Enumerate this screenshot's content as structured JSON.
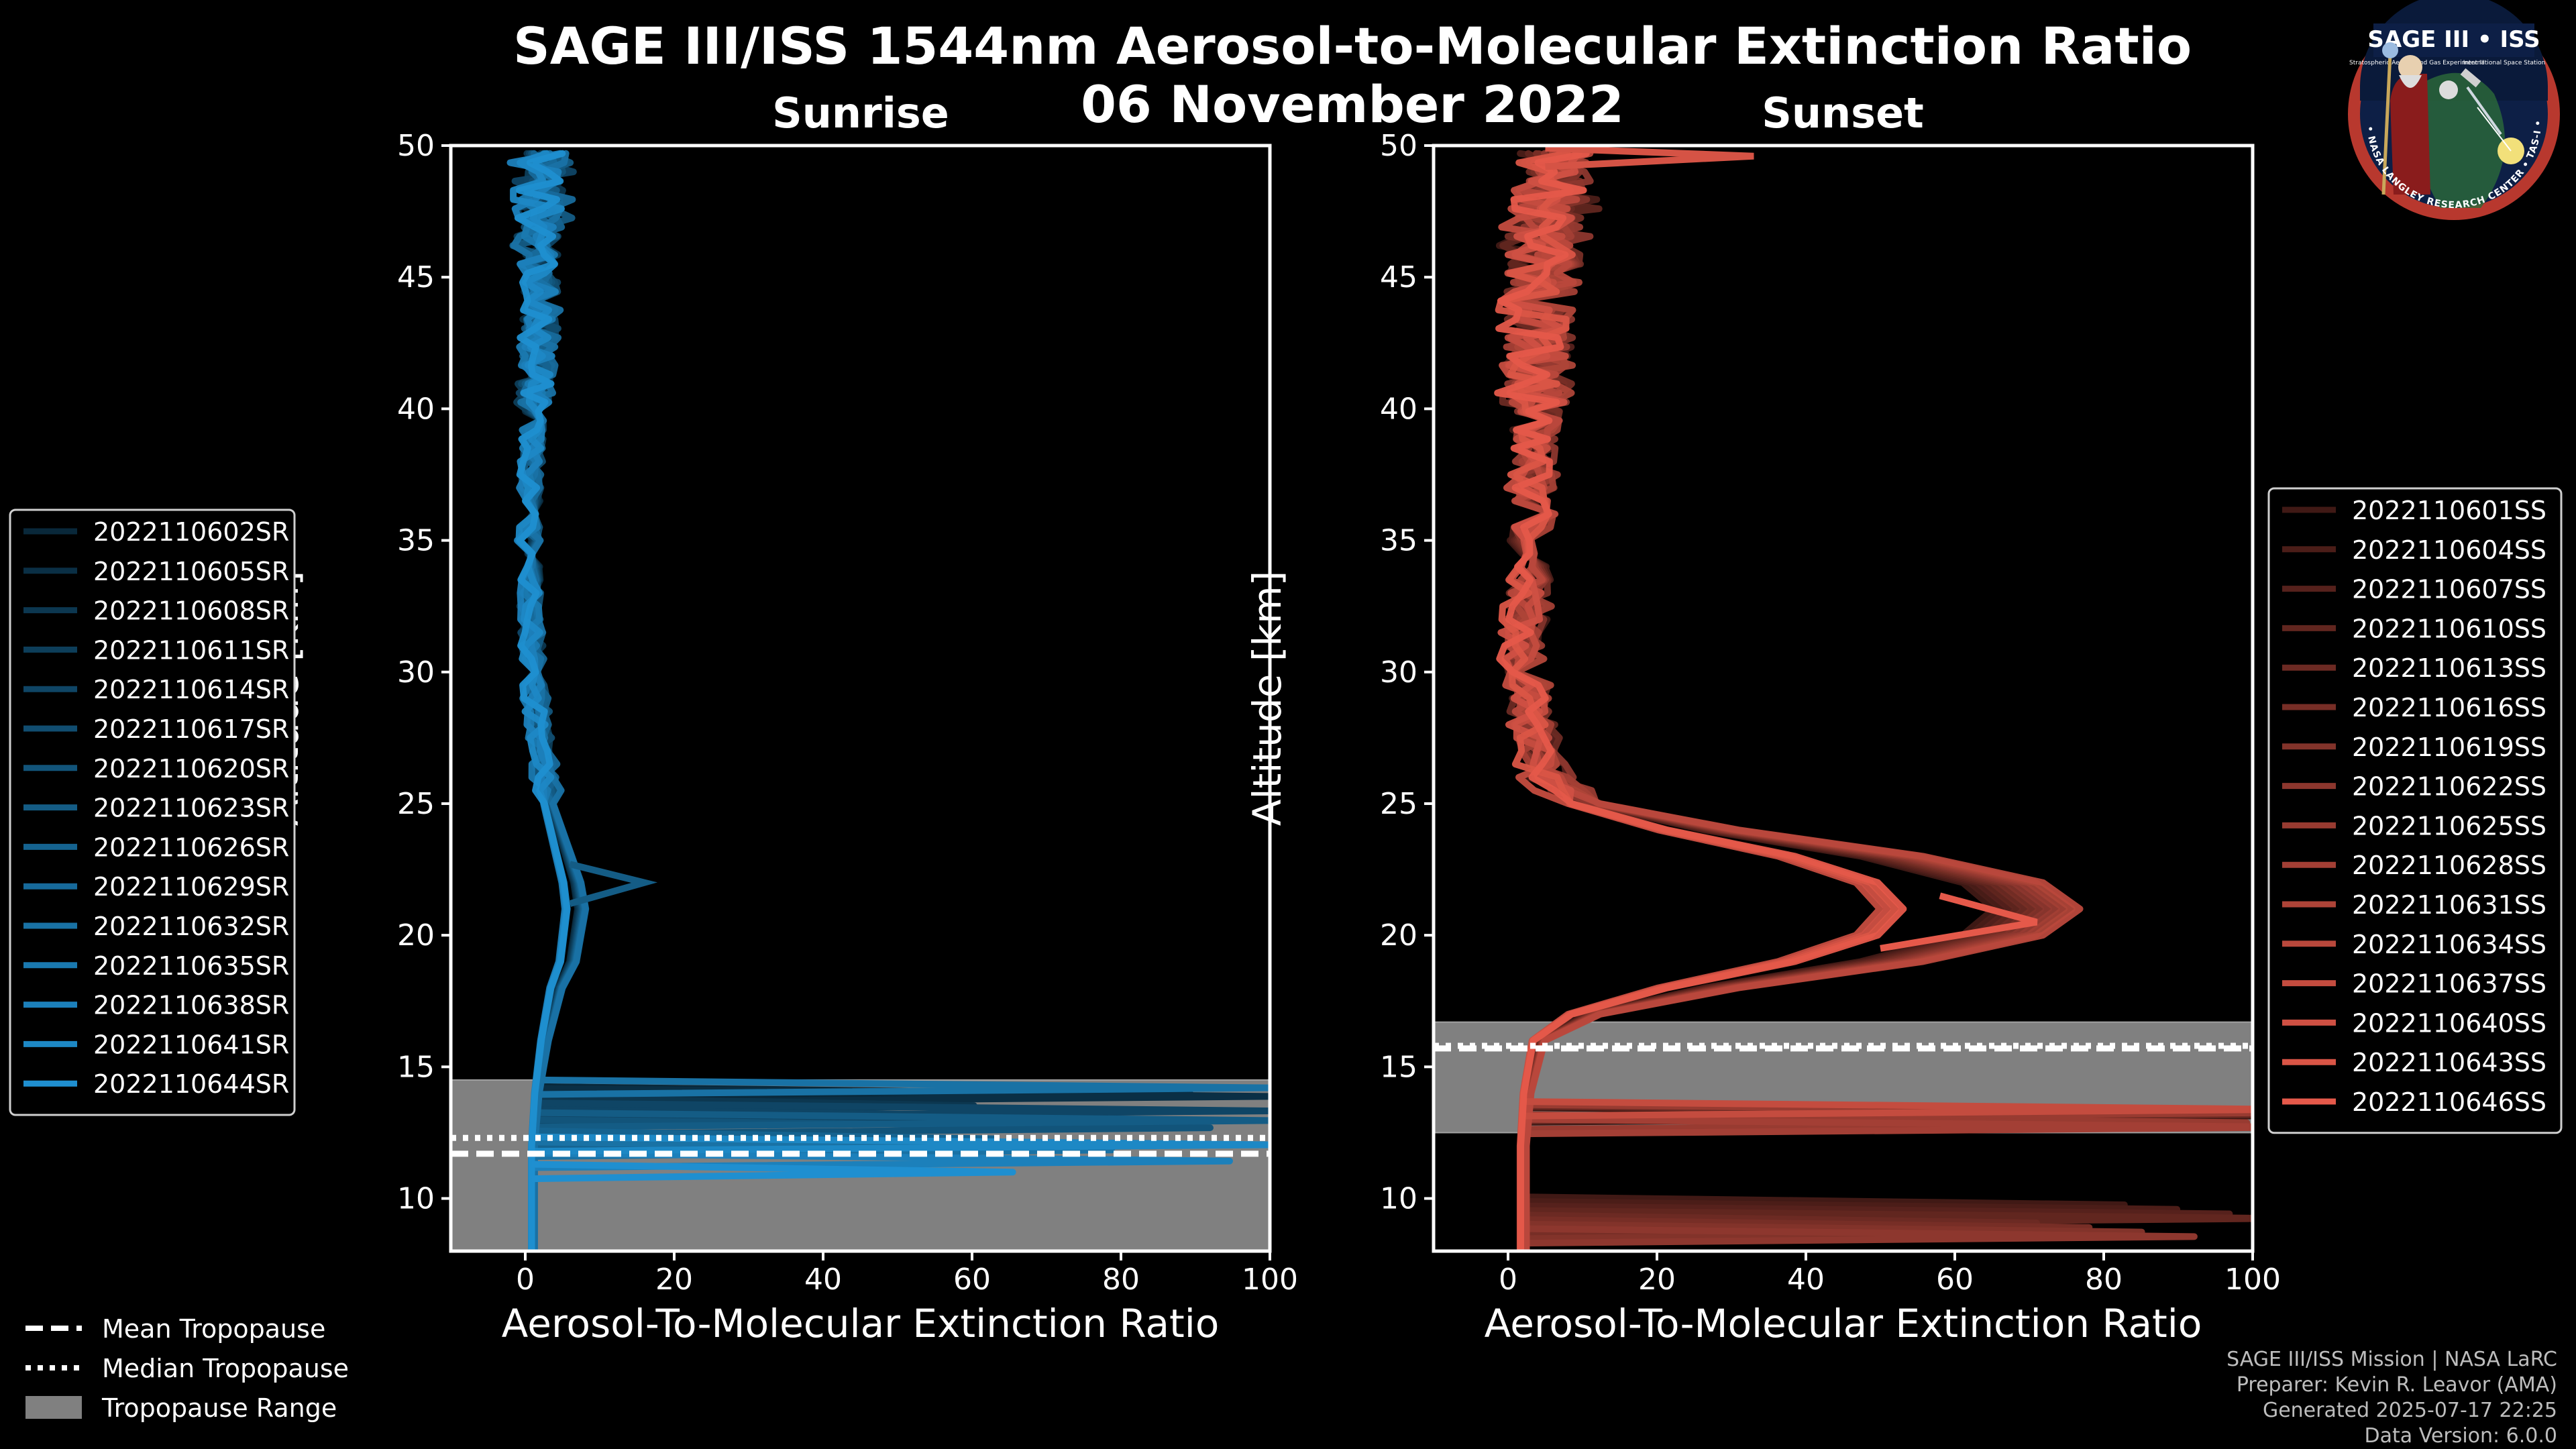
{
  "title_line1": "SAGE III/ISS 1544nm Aerosol-to-Molecular Extinction Ratio",
  "title_line2": "06 November 2022",
  "logo": {
    "top_text": "SAGE III • ISS",
    "sub_text_left": "Stratospheric Aerosol and Gas Experiment III",
    "sub_text_right": "International Space Station",
    "ring_text": "BALL • NASA LANGLEY RESEARCH CENTER • TAS-I • ESA"
  },
  "legend_common": {
    "items": [
      "Mean Tropopause",
      "Median Tropopause",
      "Tropopause Range"
    ]
  },
  "footer": {
    "line1": "SAGE III/ISS Mission | NASA LaRC",
    "line2": "Preparer: Kevin R. Leavor (AMA)",
    "line3": "Generated 2025-07-17 22:25",
    "line4": "Data Version: 6.0.0"
  },
  "colors": {
    "sunrise": "#1f8fd0",
    "sunset": "#e5594a",
    "trop_range": "#808080"
  },
  "chart_data": [
    {
      "type": "line",
      "title": "Sunrise",
      "xlabel": "Aerosol-To-Molecular Extinction Ratio",
      "ylabel": "Altitude [km]",
      "xlim": [
        -10,
        100
      ],
      "ylim": [
        8,
        50
      ],
      "xticks": [
        0,
        20,
        40,
        60,
        80,
        100
      ],
      "yticks": [
        10,
        15,
        20,
        25,
        30,
        35,
        40,
        45,
        50
      ],
      "tropopause": {
        "mean": 11.7,
        "median": 12.3,
        "range": [
          8,
          14.5
        ]
      },
      "legend": [
        "2022110602SR",
        "2022110605SR",
        "2022110608SR",
        "2022110611SR",
        "2022110614SR",
        "2022110617SR",
        "2022110620SR",
        "2022110623SR",
        "2022110626SR",
        "2022110629SR",
        "2022110632SR",
        "2022110635SR",
        "2022110638SR",
        "2022110641SR",
        "2022110644SR"
      ],
      "typical_profile": {
        "altitude": [
          8,
          10,
          12,
          14,
          16,
          18,
          19,
          20,
          21,
          22,
          23,
          24,
          25,
          27,
          30,
          33,
          36,
          40,
          44,
          47,
          50
        ],
        "ratio": [
          1.0,
          1.0,
          1.0,
          1.5,
          2.5,
          4.0,
          5.5,
          6.0,
          6.5,
          6.0,
          5.0,
          4.0,
          3.0,
          2.0,
          1.0,
          0.5,
          0.5,
          1.0,
          2.0,
          2.0,
          2.5
        ]
      },
      "extreme_values": {
        "max_peak": [
          16,
          22.0
        ],
        "near_tropopause": [
          100,
          12.2
        ]
      }
    },
    {
      "type": "line",
      "title": "Sunset",
      "xlabel": "Aerosol-To-Molecular Extinction Ratio",
      "ylabel": "Altitude [km]",
      "xlim": [
        -10,
        100
      ],
      "ylim": [
        8,
        50
      ],
      "xticks": [
        0,
        20,
        40,
        60,
        80,
        100
      ],
      "yticks": [
        10,
        15,
        20,
        25,
        30,
        35,
        40,
        45,
        50
      ],
      "tropopause": {
        "mean": 15.7,
        "median": 15.8,
        "range": [
          12.5,
          16.7
        ]
      },
      "legend": [
        "2022110601SS",
        "2022110604SS",
        "2022110607SS",
        "2022110610SS",
        "2022110613SS",
        "2022110616SS",
        "2022110619SS",
        "2022110622SS",
        "2022110625SS",
        "2022110628SS",
        "2022110631SS",
        "2022110634SS",
        "2022110637SS",
        "2022110640SS",
        "2022110643SS",
        "2022110646SS"
      ],
      "typical_profile": {
        "altitude": [
          8,
          10,
          12,
          14,
          16,
          17,
          18,
          19,
          20,
          21,
          22,
          23,
          24,
          25,
          26,
          28,
          30,
          33,
          36,
          40,
          44,
          47,
          50
        ],
        "ratio": [
          2.0,
          2.0,
          2.0,
          2.5,
          4.0,
          10.0,
          25.0,
          45.0,
          58.0,
          62.0,
          58.0,
          45.0,
          25.0,
          10.0,
          5.0,
          3.0,
          2.0,
          2.5,
          3.0,
          3.5,
          4.0,
          5.0,
          6.0
        ]
      },
      "extreme_values": {
        "max_peak": [
          71,
          20.5
        ],
        "spike_top": [
          33,
          49.6
        ]
      }
    }
  ]
}
